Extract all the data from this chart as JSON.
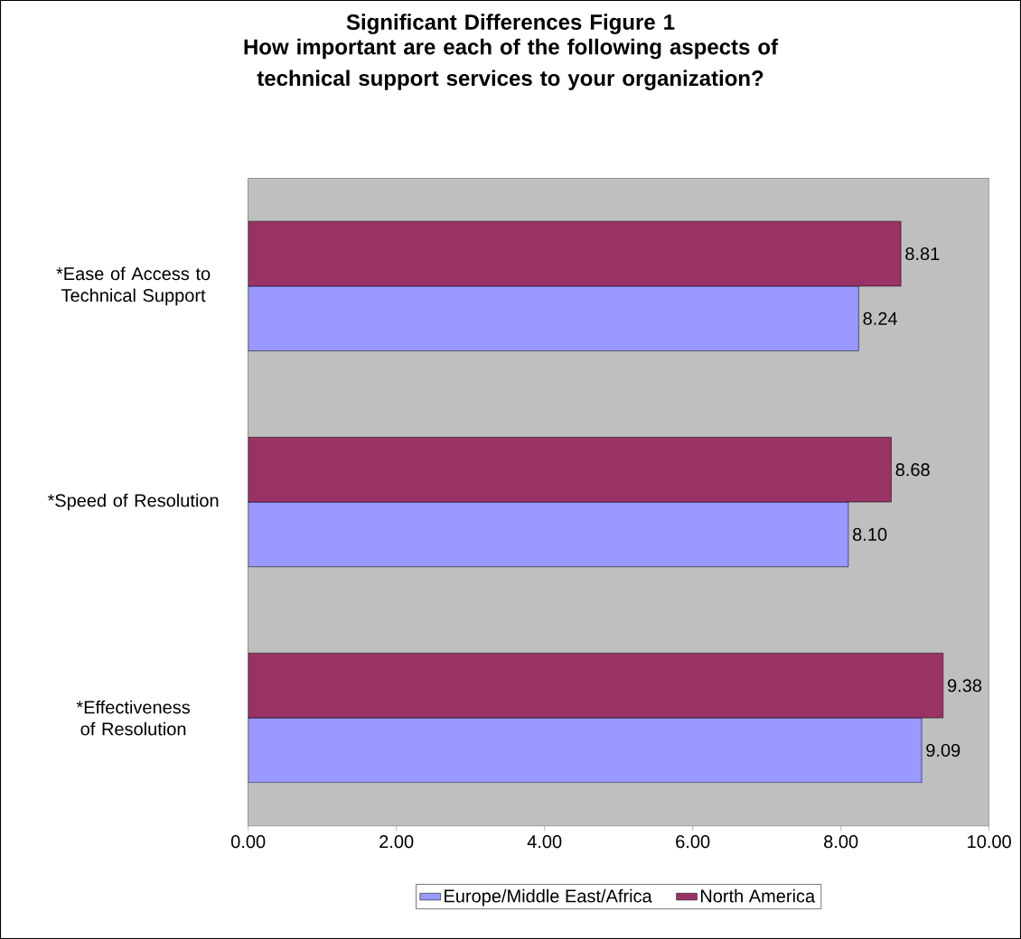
{
  "chart_data": {
    "type": "bar",
    "orientation": "horizontal",
    "title": "Significant Differences Figure 1",
    "subtitle": "How important are each of the following aspects of technical support services to your organization?",
    "categories": [
      "*Ease of Access to Technical Support",
      "*Speed of Resolution",
      "*Effectiveness of Resolution"
    ],
    "series": [
      {
        "name": "Europe/Middle East/Africa",
        "color": "#9999ff",
        "values": [
          8.24,
          8.1,
          9.09
        ],
        "value_labels": [
          "8.24",
          "8.10",
          "9.09"
        ]
      },
      {
        "name": "North America",
        "color": "#993366",
        "values": [
          8.81,
          8.68,
          9.38
        ],
        "value_labels": [
          "8.81",
          "8.68",
          "9.38"
        ]
      }
    ],
    "xlim": [
      0,
      10
    ],
    "xticks": [
      {
        "value": 0,
        "label": "0.00"
      },
      {
        "value": 2,
        "label": "2.00"
      },
      {
        "value": 4,
        "label": "4.00"
      },
      {
        "value": 6,
        "label": "6.00"
      },
      {
        "value": 8,
        "label": "8.00"
      },
      {
        "value": 10,
        "label": "10.00"
      }
    ],
    "legend": "bottom",
    "grid": false
  }
}
